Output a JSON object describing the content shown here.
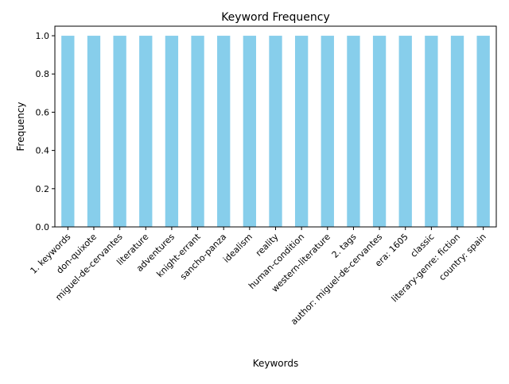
{
  "chart_data": {
    "type": "bar",
    "title": "Keyword Frequency",
    "xlabel": "Keywords",
    "ylabel": "Frequency",
    "categories": [
      "1. keywords",
      "don-quixote",
      "miguel-de-cervantes",
      "literature",
      "adventures",
      "knight-errant",
      "sancho-panza",
      "idealism",
      "reality",
      "human-condition",
      "western-literature",
      "2. tags",
      "author: miguel-de-cervantes",
      "era: 1605",
      "classic",
      "literary-genre: fiction",
      "country: spain"
    ],
    "values": [
      1,
      1,
      1,
      1,
      1,
      1,
      1,
      1,
      1,
      1,
      1,
      1,
      1,
      1,
      1,
      1,
      1
    ],
    "ylim": [
      0,
      1.05
    ],
    "yticks": [
      "0.0",
      "0.2",
      "0.4",
      "0.6",
      "0.8",
      "1.0"
    ],
    "bar_color": "#87ceeb",
    "grid": false,
    "legend": "none"
  }
}
